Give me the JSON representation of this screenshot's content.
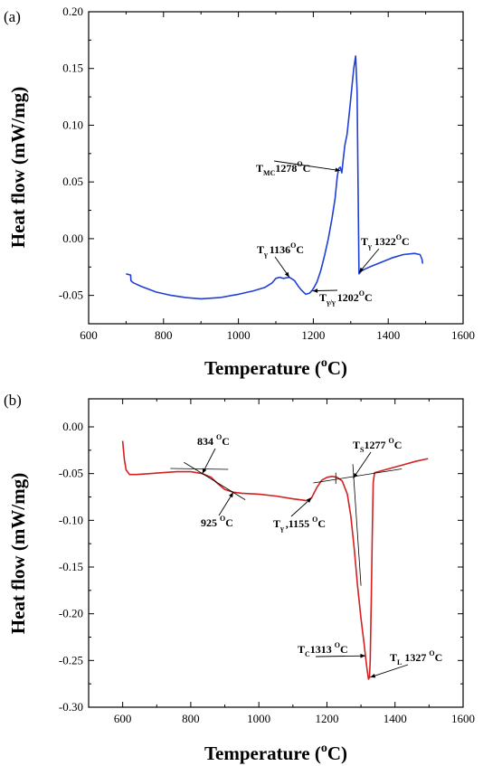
{
  "chart_data": [
    {
      "type": "line",
      "panel_label": "(a)",
      "xlabel_main": "Temperature (",
      "xlabel_sup": "o",
      "xlabel_tail": "C)",
      "ylabel": "Heat flow (mW/mg)",
      "xlim": [
        600,
        1600
      ],
      "ylim": [
        -0.075,
        0.2
      ],
      "xticks": [
        600,
        800,
        1000,
        1200,
        1400,
        1600
      ],
      "yticks": [
        -0.05,
        0.0,
        0.05,
        0.1,
        0.15,
        0.2
      ],
      "ytick_labels": [
        "-0.05",
        "0.00",
        "0.05",
        "0.10",
        "0.15",
        "0.20"
      ],
      "grid": false,
      "series": [
        {
          "color": "#1f3fd6",
          "x": [
            700,
            712,
            713,
            716,
            720,
            740,
            780,
            820,
            860,
            900,
            950,
            1000,
            1040,
            1070,
            1090,
            1100,
            1110,
            1120,
            1136,
            1150,
            1160,
            1170,
            1180,
            1190,
            1196,
            1202,
            1210,
            1220,
            1230,
            1240,
            1250,
            1258,
            1264,
            1268,
            1272,
            1276,
            1280,
            1284,
            1290,
            1296,
            1302,
            1308,
            1313,
            1317,
            1319,
            1322,
            1330,
            1350,
            1380,
            1410,
            1440,
            1470,
            1485,
            1490,
            1492
          ],
          "y": [
            -0.031,
            -0.032,
            -0.037,
            -0.038,
            -0.039,
            -0.042,
            -0.047,
            -0.05,
            -0.052,
            -0.053,
            -0.052,
            -0.049,
            -0.046,
            -0.043,
            -0.039,
            -0.035,
            -0.034,
            -0.035,
            -0.034,
            -0.037,
            -0.042,
            -0.046,
            -0.049,
            -0.048,
            -0.046,
            -0.043,
            -0.038,
            -0.028,
            -0.015,
            0.0,
            0.018,
            0.035,
            0.055,
            0.062,
            0.063,
            0.058,
            0.07,
            0.082,
            0.092,
            0.11,
            0.13,
            0.15,
            0.161,
            0.13,
            0.06,
            -0.031,
            -0.028,
            -0.025,
            -0.021,
            -0.017,
            -0.014,
            -0.013,
            -0.014,
            -0.018,
            -0.022
          ]
        }
      ],
      "annotations": [
        {
          "main": "T",
          "sub": "MC",
          "rest": "1278",
          "sup": "O",
          "unit": "C",
          "point": [
            1272,
            0.06
          ]
        },
        {
          "main": "T",
          "sub": "γ ",
          "rest": "1136",
          "sup": "O",
          "unit": "C",
          "point": [
            1136,
            -0.034
          ]
        },
        {
          "main": "T",
          "sub": "γ/γ ",
          "rest": "1202",
          "sup": "O",
          "unit": "C",
          "point": [
            1198,
            -0.046
          ]
        },
        {
          "main": "T",
          "sub": "γ",
          "rest": " 1322",
          "sup": "O",
          "unit": "C",
          "point": [
            1322,
            -0.03
          ]
        }
      ]
    },
    {
      "type": "line",
      "panel_label": "(b)",
      "xlabel_main": "Temperature (",
      "xlabel_sup": "o",
      "xlabel_tail": "C)",
      "ylabel": "Heat flow (mW/mg)",
      "xlim": [
        500,
        1600
      ],
      "ylim": [
        -0.3,
        0.03
      ],
      "xticks": [
        600,
        800,
        1000,
        1200,
        1400,
        1600
      ],
      "yticks": [
        0.0,
        -0.05,
        -0.1,
        -0.15,
        -0.2,
        -0.25,
        -0.3
      ],
      "ytick_labels": [
        "0.00",
        "-0.05",
        "-0.10",
        "-0.15",
        "-0.20",
        "-0.25",
        "-0.30"
      ],
      "grid": false,
      "series": [
        {
          "color": "#d42020",
          "x": [
            600,
            605,
            610,
            620,
            640,
            680,
            720,
            760,
            800,
            834,
            860,
            880,
            900,
            925,
            950,
            1000,
            1050,
            1100,
            1140,
            1155,
            1170,
            1185,
            1200,
            1215,
            1230,
            1245,
            1260,
            1270,
            1280,
            1290,
            1300,
            1310,
            1313,
            1318,
            1322,
            1325,
            1327,
            1330,
            1333,
            1336,
            1340,
            1350,
            1380,
            1420,
            1460,
            1497
          ],
          "y": [
            -0.015,
            -0.035,
            -0.046,
            -0.051,
            -0.051,
            -0.05,
            -0.049,
            -0.048,
            -0.048,
            -0.05,
            -0.054,
            -0.061,
            -0.067,
            -0.07,
            -0.071,
            -0.072,
            -0.074,
            -0.077,
            -0.079,
            -0.076,
            -0.065,
            -0.057,
            -0.054,
            -0.053,
            -0.054,
            -0.058,
            -0.072,
            -0.095,
            -0.13,
            -0.17,
            -0.205,
            -0.235,
            -0.245,
            -0.26,
            -0.27,
            -0.268,
            -0.25,
            -0.19,
            -0.12,
            -0.06,
            -0.049,
            -0.048,
            -0.045,
            -0.041,
            -0.037,
            -0.034
          ]
        }
      ],
      "annotations": [
        {
          "main": "834 ",
          "sub": "",
          "rest": "",
          "sup": "O",
          "unit": "C",
          "point": [
            834,
            -0.05
          ]
        },
        {
          "main": "925 ",
          "sub": "",
          "rest": "",
          "sup": "O",
          "unit": "C",
          "point": [
            925,
            -0.07
          ]
        },
        {
          "main": "T",
          "sub": "γ ",
          "rest": ",1155 ",
          "sup": "O",
          "unit": "C",
          "point": [
            1155,
            -0.076
          ]
        },
        {
          "main": "T",
          "sub": "S",
          "rest": "1277 ",
          "sup": "O",
          "unit": "C",
          "point": [
            1277,
            -0.055
          ]
        },
        {
          "main": "T",
          "sub": "C",
          "rest": "1313 ",
          "sup": "O",
          "unit": "C",
          "point": [
            1313,
            -0.245
          ]
        },
        {
          "main": "T",
          "sub": "L",
          "rest": " 1327 ",
          "sup": "O",
          "unit": "C",
          "point": [
            1327,
            -0.268
          ]
        }
      ]
    }
  ]
}
